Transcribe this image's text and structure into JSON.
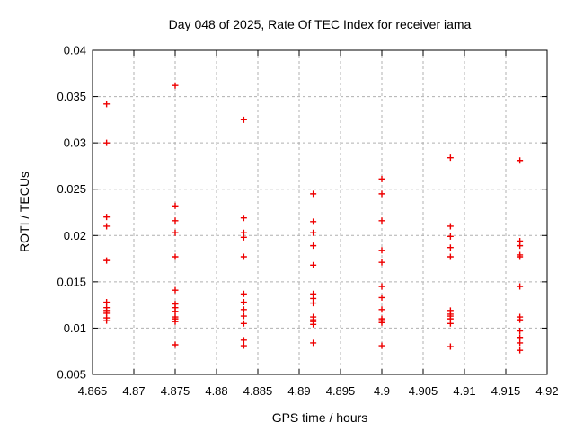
{
  "chart_data": {
    "type": "scatter",
    "title": "Day 048 of 2025, Rate Of TEC Index for receiver iama",
    "xlabel": "GPS time / hours",
    "ylabel": "ROTI / TECUs",
    "xlim": [
      4.865,
      4.92
    ],
    "ylim": [
      0.005,
      0.04
    ],
    "xticks": [
      {
        "v": 4.865,
        "label": "4.865"
      },
      {
        "v": 4.87,
        "label": "4.87"
      },
      {
        "v": 4.875,
        "label": "4.875"
      },
      {
        "v": 4.88,
        "label": "4.88"
      },
      {
        "v": 4.885,
        "label": "4.885"
      },
      {
        "v": 4.89,
        "label": "4.89"
      },
      {
        "v": 4.895,
        "label": "4.895"
      },
      {
        "v": 4.9,
        "label": "4.9"
      },
      {
        "v": 4.905,
        "label": "4.905"
      },
      {
        "v": 4.91,
        "label": "4.91"
      },
      {
        "v": 4.915,
        "label": "4.915"
      },
      {
        "v": 4.92,
        "label": "4.92"
      }
    ],
    "yticks": [
      {
        "v": 0.005,
        "label": "0.005"
      },
      {
        "v": 0.01,
        "label": "0.01"
      },
      {
        "v": 0.015,
        "label": "0.015"
      },
      {
        "v": 0.02,
        "label": "0.02"
      },
      {
        "v": 0.025,
        "label": "0.025"
      },
      {
        "v": 0.03,
        "label": "0.03"
      },
      {
        "v": 0.035,
        "label": "0.035"
      },
      {
        "v": 0.04,
        "label": "0.04"
      }
    ],
    "grid": true,
    "legend_position": "none",
    "marker": "plus",
    "colors": {
      "marker": "#ee0000",
      "grid": "#b0b0b0",
      "axis": "#000000",
      "background": "#ffffff"
    },
    "series": [
      {
        "name": "ROTI",
        "groups": [
          {
            "t": 4.8667,
            "values": [
              0.0342,
              0.03,
              0.022,
              0.021,
              0.0173,
              0.0128,
              0.0122,
              0.0119,
              0.0116,
              0.0111,
              0.0108
            ]
          },
          {
            "t": 4.875,
            "values": [
              0.0362,
              0.0232,
              0.0216,
              0.0203,
              0.0177,
              0.0141,
              0.0126,
              0.0122,
              0.0118,
              0.0112,
              0.011,
              0.0107,
              0.0082
            ]
          },
          {
            "t": 4.8833,
            "values": [
              0.0325,
              0.0219,
              0.0203,
              0.0198,
              0.0177,
              0.0137,
              0.0128,
              0.012,
              0.0113,
              0.0105,
              0.0087,
              0.0081
            ]
          },
          {
            "t": 4.8917,
            "values": [
              0.0245,
              0.0215,
              0.0203,
              0.0189,
              0.0168,
              0.0137,
              0.0132,
              0.0127,
              0.0112,
              0.0109,
              0.0107,
              0.0104,
              0.0084
            ]
          },
          {
            "t": 4.9,
            "values": [
              0.0261,
              0.0245,
              0.0216,
              0.0184,
              0.0171,
              0.0145,
              0.0133,
              0.012,
              0.011,
              0.0108,
              0.0106,
              0.0081
            ]
          },
          {
            "t": 4.9083,
            "values": [
              0.0284,
              0.021,
              0.0199,
              0.0187,
              0.0177,
              0.0119,
              0.0115,
              0.0113,
              0.011,
              0.0105,
              0.008
            ]
          },
          {
            "t": 4.9167,
            "values": [
              0.0281,
              0.0194,
              0.0189,
              0.0179,
              0.0177,
              0.0145,
              0.0112,
              0.0109,
              0.0097,
              0.009,
              0.0084,
              0.0076
            ]
          }
        ]
      }
    ]
  }
}
